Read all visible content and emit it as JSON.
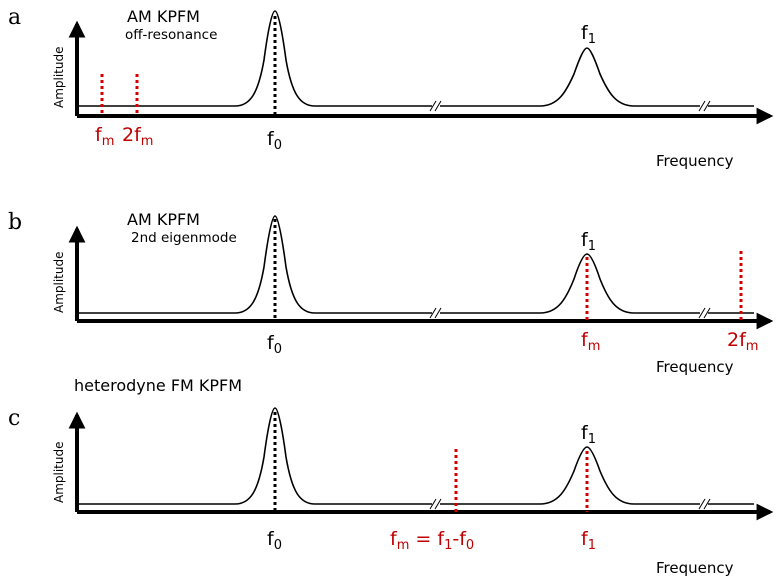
{
  "axis_labels": {
    "amplitude": "Amplitude",
    "frequency": "Frequency"
  },
  "panels": [
    {
      "letter": "a",
      "title": "AM KPFM",
      "subtitle": "off-resonance",
      "peaks": [
        {
          "base": "f",
          "sub": "0"
        },
        {
          "base": "f",
          "sub": "1"
        }
      ],
      "red_markers": [
        {
          "base": "f",
          "sub": "m"
        },
        {
          "base": "2f",
          "sub": "m"
        }
      ]
    },
    {
      "letter": "b",
      "title": "AM KPFM",
      "subtitle": "2nd eigenmode",
      "peaks": [
        {
          "base": "f",
          "sub": "0"
        },
        {
          "base": "f",
          "sub": "1"
        }
      ],
      "red_markers": [
        {
          "base": "f",
          "sub": "m"
        },
        {
          "base": "2f",
          "sub": "m"
        }
      ]
    },
    {
      "letter": "c",
      "title": "heterodyne FM KPFM",
      "subtitle": "",
      "peaks": [
        {
          "base": "f",
          "sub": "0"
        },
        {
          "base": "f",
          "sub": "1"
        }
      ],
      "red_markers": [
        {
          "base": "f",
          "sub": "m",
          "equation": {
            "eq": " = f",
            "sub1": "1",
            "minus": "-f",
            "sub0": "0"
          }
        },
        {
          "base": "f",
          "sub": "1"
        }
      ]
    }
  ],
  "colors": {
    "axis": "#000000",
    "modulation_marker": "#d40000"
  }
}
